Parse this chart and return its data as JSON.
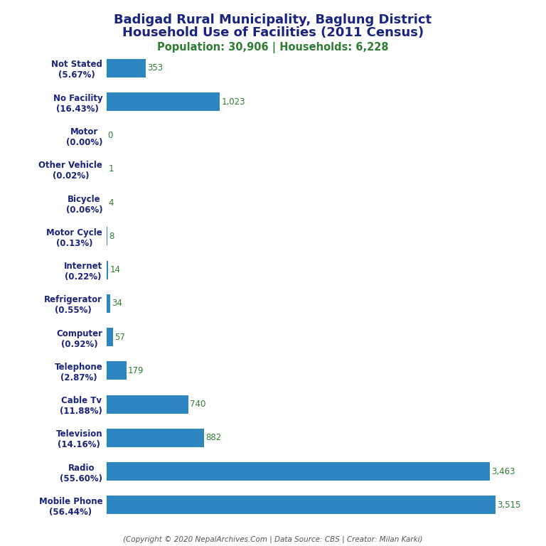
{
  "title_line1": "Badigad Rural Municipality, Baglung District",
  "title_line2": "Household Use of Facilities (2011 Census)",
  "subtitle": "Population: 30,906 | Households: 6,228",
  "footer": "(Copyright © 2020 NepalArchives.Com | Data Source: CBS | Creator: Milan Karki)",
  "categories": [
    "Not Stated\n(5.67%)",
    "No Facility\n(16.43%)",
    "Motor\n(0.00%)",
    "Other Vehicle\n(0.02%)",
    "Bicycle\n(0.06%)",
    "Motor Cycle\n(0.13%)",
    "Internet\n(0.22%)",
    "Refrigerator\n(0.55%)",
    "Computer\n(0.92%)",
    "Telephone\n(2.87%)",
    "Cable Tv\n(11.88%)",
    "Television\n(14.16%)",
    "Radio\n(55.60%)",
    "Mobile Phone\n(56.44%)"
  ],
  "values": [
    353,
    1023,
    0,
    1,
    4,
    8,
    14,
    34,
    57,
    179,
    740,
    882,
    3463,
    3515
  ],
  "bar_color": "#2e86c1",
  "title_color": "#1a237e",
  "subtitle_color": "#2e7d32",
  "value_color": "#2e7d32",
  "footer_color": "#555555",
  "background_color": "#ffffff",
  "xlim": [
    0,
    3800
  ],
  "title_fontsize": 13,
  "subtitle_fontsize": 10.5,
  "label_fontsize": 8.5,
  "value_fontsize": 8.5
}
